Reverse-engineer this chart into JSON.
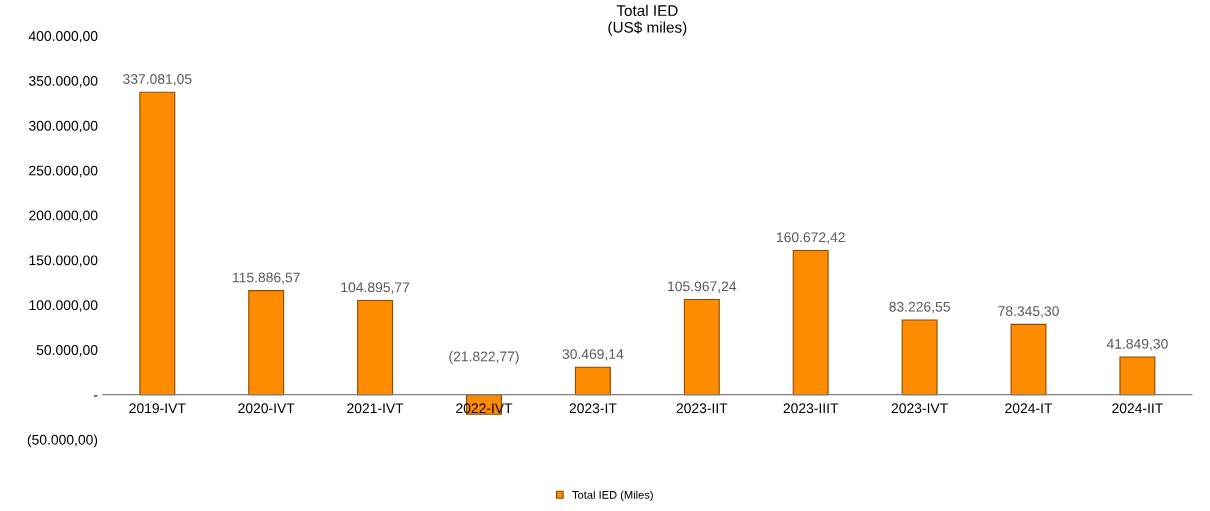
{
  "chart_data": {
    "type": "bar",
    "title": "Total IED\n(US$ miles)",
    "categories": [
      "2019-IVT",
      "2020-IVT",
      "2021-IVT",
      "2022-IVT",
      "2023-IT",
      "2023-IIT",
      "2023-IIIT",
      "2023-IVT",
      "2024-IT",
      "2024-IIT"
    ],
    "series": [
      {
        "name": "Total IED (Miles)",
        "color": "#ff8c00",
        "values": [
          337081.05,
          115886.57,
          104895.77,
          -21822.77,
          30469.14,
          105967.24,
          160672.42,
          83226.55,
          78345.3,
          41849.3
        ],
        "value_labels": [
          "337.081,05",
          "115.886,57",
          "104.895,77",
          "(21.822,77)",
          "30.469,14",
          "105.967,24",
          "160.672,42",
          "83.226,55",
          "78.345,30",
          "41.849,30"
        ]
      }
    ],
    "ylim": [
      -50000,
      400000
    ],
    "yticks": [
      {
        "value": -50000,
        "label": "(50.000,00)"
      },
      {
        "value": 0,
        "label": "-"
      },
      {
        "value": 50000,
        "label": "50.000,00"
      },
      {
        "value": 100000,
        "label": "100.000,00"
      },
      {
        "value": 150000,
        "label": "150.000,00"
      },
      {
        "value": 200000,
        "label": "200.000,00"
      },
      {
        "value": 250000,
        "label": "250.000,00"
      },
      {
        "value": 300000,
        "label": "300.000,00"
      },
      {
        "value": 350000,
        "label": "350.000,00"
      },
      {
        "value": 400000,
        "label": "400.000,00"
      }
    ],
    "grid": false,
    "legend": "bottom"
  }
}
